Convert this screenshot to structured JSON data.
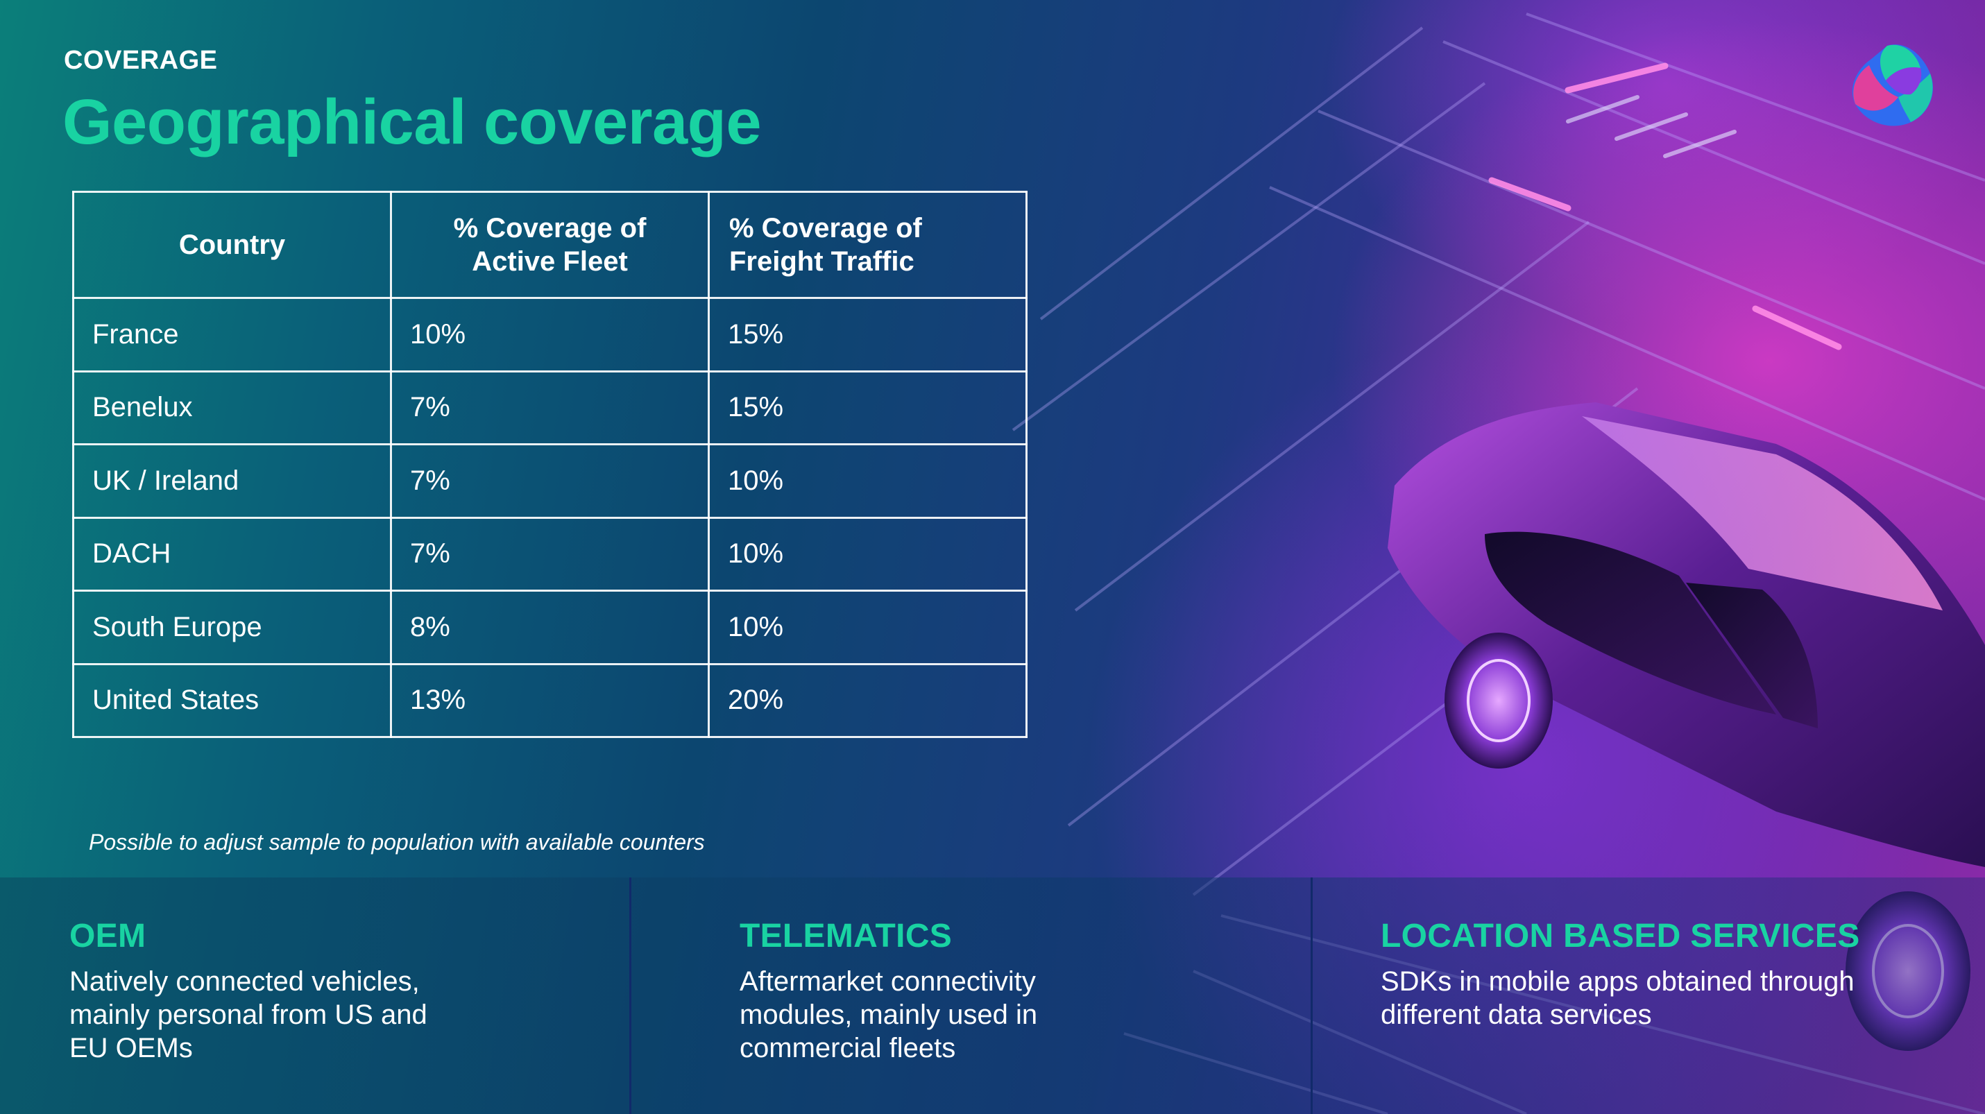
{
  "header": {
    "eyebrow": "COVERAGE",
    "title": "Geographical coverage"
  },
  "logo": {
    "icon": "brand-logo-icon",
    "colors": [
      "#1fd2a4",
      "#2f6cf0",
      "#e0409c",
      "#8a3be0"
    ]
  },
  "table": {
    "headers": [
      {
        "lines": [
          "Country"
        ]
      },
      {
        "lines": [
          "% Coverage of",
          "Active Fleet"
        ]
      },
      {
        "lines": [
          "% Coverage of",
          "Freight Traffic"
        ]
      }
    ],
    "rows": [
      [
        "France",
        "10%",
        "15%"
      ],
      [
        "Benelux",
        "7%",
        "15%"
      ],
      [
        "UK / Ireland",
        "7%",
        "10%"
      ],
      [
        "DACH",
        "7%",
        "10%"
      ],
      [
        "South Europe",
        "8%",
        "10%"
      ],
      [
        "United States",
        "13%",
        "20%"
      ]
    ]
  },
  "note": "Possible to adjust sample to population with available counters",
  "sources": [
    {
      "heading": "OEM",
      "lines": [
        "Natively connected vehicles,",
        "mainly personal from US and",
        "EU OEMs"
      ]
    },
    {
      "heading": "TELEMATICS",
      "lines": [
        "Aftermarket connectivity",
        "modules, mainly used in",
        "commercial fleets"
      ]
    },
    {
      "heading": "LOCATION BASED SERVICES",
      "lines": [
        "SDKs in mobile apps obtained through",
        "different data services"
      ]
    }
  ],
  "colors": {
    "accent": "#19d3a2",
    "text": "#ffffff",
    "table_border": "#ffffff"
  }
}
